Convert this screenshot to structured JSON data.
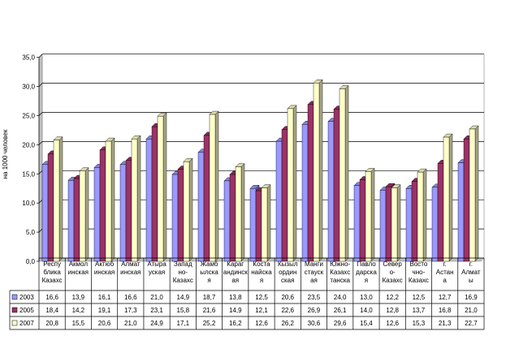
{
  "chart_data": {
    "type": "bar",
    "ylabel": "на 1000 человек",
    "ylim": [
      0,
      35
    ],
    "yticks": [
      "0,0",
      "5,0",
      "10,0",
      "15,0",
      "20,0",
      "25,0",
      "30,0",
      "35,0"
    ],
    "grid": true,
    "legend": "data-table-left",
    "categories": [
      [
        "Респу",
        "блика",
        "Казахс"
      ],
      [
        "Акмол",
        "инская"
      ],
      [
        "Актюб",
        "инская"
      ],
      [
        "Алмат",
        "инская"
      ],
      [
        "Атыра",
        "уская"
      ],
      [
        "Запад",
        "но-",
        "Казахс"
      ],
      [
        "Жамб",
        "ылска",
        "я"
      ],
      [
        "Караг",
        "андинск",
        "ая"
      ],
      [
        "Коста",
        "найска",
        "я"
      ],
      [
        "Кызыл",
        "ордин",
        "ская"
      ],
      [
        "Манги",
        "стауск",
        "ая"
      ],
      [
        "Южно-",
        "Казахс",
        "танска"
      ],
      [
        "Павло",
        "дарска",
        "я"
      ],
      [
        "Север",
        "о-",
        "Казахс"
      ],
      [
        "Восто",
        "чно-",
        "Казахс"
      ],
      [
        "г.",
        "Астан",
        "а"
      ],
      [
        "г.",
        "Алмат",
        "ы"
      ]
    ],
    "series": [
      {
        "name": "2003",
        "color": "#9999ff",
        "values": [
          16.6,
          13.9,
          16.1,
          16.6,
          21.0,
          14.9,
          18.7,
          13.8,
          12.5,
          20.6,
          23.5,
          24.0,
          13.0,
          12.2,
          12.5,
          12.7,
          16.9
        ],
        "labels": [
          "16,6",
          "13,9",
          "16,1",
          "16,6",
          "21,0",
          "14,9",
          "18,7",
          "13,8",
          "12,5",
          "20,6",
          "23,5",
          "24,0",
          "13,0",
          "12,2",
          "12,5",
          "12,7",
          "16,9"
        ]
      },
      {
        "name": "2005",
        "color": "#993366",
        "values": [
          18.4,
          14.2,
          19.1,
          17.3,
          23.1,
          15.8,
          21.6,
          14.9,
          12.1,
          22.6,
          26.9,
          26.1,
          14.0,
          12.8,
          13.7,
          16.8,
          21.0
        ],
        "labels": [
          "18,4",
          "14,2",
          "19,1",
          "17,3",
          "23,1",
          "15,8",
          "21,6",
          "14,9",
          "12,1",
          "22,6",
          "26,9",
          "26,1",
          "14,0",
          "12,8",
          "13,7",
          "16,8",
          "21,0"
        ]
      },
      {
        "name": "2007",
        "color": "#ffffcc",
        "values": [
          20.8,
          15.5,
          20.6,
          21.0,
          24.9,
          17.1,
          25.2,
          16.2,
          12.6,
          26.2,
          30.6,
          29.6,
          15.4,
          12.6,
          15.3,
          21.3,
          22.7
        ],
        "labels": [
          "20,8",
          "15,5",
          "20,6",
          "21,0",
          "24,9",
          "17,1",
          "25,2",
          "16,2",
          "12,6",
          "26,2",
          "30,6",
          "29,6",
          "15,4",
          "12,6",
          "15,3",
          "21,3",
          "22,7"
        ]
      }
    ]
  }
}
